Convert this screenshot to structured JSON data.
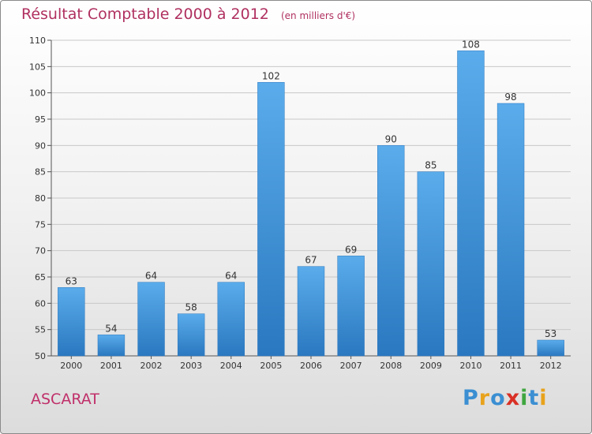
{
  "chart_data": {
    "type": "bar",
    "title": "Résultat Comptable 2000 à 2012",
    "subtitle": "(en milliers d'€)",
    "categories": [
      "2000",
      "2001",
      "2002",
      "2003",
      "2004",
      "2005",
      "2006",
      "2007",
      "2008",
      "2009",
      "2010",
      "2011",
      "2012"
    ],
    "values": [
      63,
      54,
      64,
      58,
      64,
      102,
      67,
      69,
      90,
      85,
      108,
      98,
      53
    ],
    "ylim": [
      50,
      110
    ],
    "yticks": [
      50,
      55,
      60,
      65,
      70,
      75,
      80,
      85,
      90,
      95,
      100,
      105,
      110
    ],
    "grid": true,
    "bar_color": "#3a8fd6"
  },
  "commune_name": "ASCARAT",
  "brand": {
    "letters": [
      {
        "ch": "P",
        "color": "#3b8fd2"
      },
      {
        "ch": "r",
        "color": "#e8a21c"
      },
      {
        "ch": "o",
        "color": "#3b8fd2"
      },
      {
        "ch": "x",
        "color": "#d93025"
      },
      {
        "ch": "i",
        "color": "#3fa63f"
      },
      {
        "ch": "t",
        "color": "#3b8fd2"
      },
      {
        "ch": "i",
        "color": "#e8a21c"
      }
    ]
  }
}
